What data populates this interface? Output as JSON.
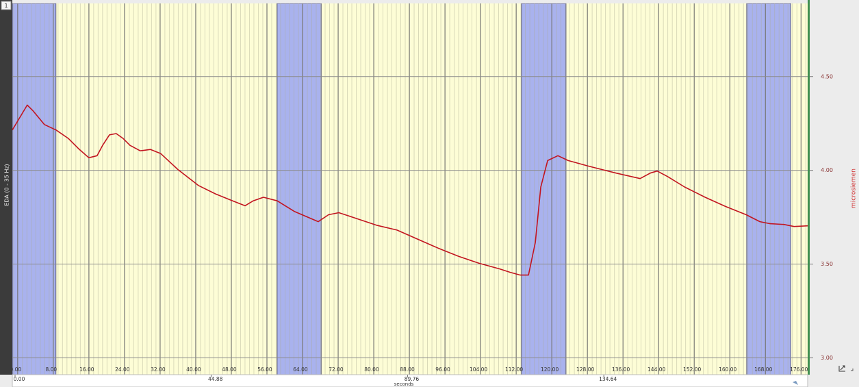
{
  "chart_data": {
    "type": "line",
    "channel_number": "1",
    "ylabel_left": "EDA (0 - 35 Hz)",
    "ylabel_right": "microsiemen",
    "xlabel": "seconds",
    "xlim": [
      -1.2,
      177.5
    ],
    "ylim": [
      2.91,
      4.89
    ],
    "xticks": [
      {
        "value": 0,
        "label": "0.00"
      },
      {
        "value": 8,
        "label": "8.00"
      },
      {
        "value": 16,
        "label": "16.00"
      },
      {
        "value": 24,
        "label": "24.00"
      },
      {
        "value": 32,
        "label": "32.00"
      },
      {
        "value": 40,
        "label": "40.00"
      },
      {
        "value": 48,
        "label": "48.00"
      },
      {
        "value": 56,
        "label": "56.00"
      },
      {
        "value": 64,
        "label": "64.00"
      },
      {
        "value": 72,
        "label": "72.00"
      },
      {
        "value": 80,
        "label": "80.00"
      },
      {
        "value": 88,
        "label": "88.00"
      },
      {
        "value": 96,
        "label": "96.00"
      },
      {
        "value": 104,
        "label": "104.00"
      },
      {
        "value": 112,
        "label": "112.00"
      },
      {
        "value": 120,
        "label": "120.00"
      },
      {
        "value": 128,
        "label": "128.00"
      },
      {
        "value": 136,
        "label": "136.00"
      },
      {
        "value": 144,
        "label": "144.00"
      },
      {
        "value": 152,
        "label": "152.00"
      },
      {
        "value": 160,
        "label": "160.00"
      },
      {
        "value": 168,
        "label": "168.00"
      },
      {
        "value": 176,
        "label": "176.00"
      }
    ],
    "xminor_step": 1,
    "yticks": [
      {
        "value": 3.0,
        "label": "3.00"
      },
      {
        "value": 3.5,
        "label": "3.50"
      },
      {
        "value": 4.0,
        "label": "4.00"
      },
      {
        "value": 4.5,
        "label": "4.50"
      }
    ],
    "overview_xlim": [
      0,
      180
    ],
    "overview_ticks": [
      {
        "value": 0,
        "label": "0.00"
      },
      {
        "value": 44.88,
        "label": "44.88"
      },
      {
        "value": 89.76,
        "label": "89.76"
      },
      {
        "value": 134.64,
        "label": "134.64"
      }
    ],
    "grid": true,
    "background_color": "#fdfdd6",
    "band_color": "#a9b2ee",
    "bands": [
      [
        -1.2,
        8.6
      ],
      [
        58.3,
        68.2
      ],
      [
        113.2,
        123.2
      ],
      [
        163.8,
        173.7
      ]
    ],
    "x": [
      -1.2,
      2.15,
      3.38,
      6.0,
      8.62,
      11.38,
      13.69,
      16.0,
      17.85,
      19.08,
      20.62,
      22.15,
      23.69,
      25.23,
      27.54,
      29.85,
      32.15,
      36.0,
      40.62,
      44.46,
      48.31,
      51.08,
      52.92,
      55.23,
      58.31,
      62.15,
      67.54,
      69.85,
      72.15,
      76.0,
      80.62,
      85.23,
      89.85,
      94.46,
      99.08,
      103.69,
      108.31,
      110.62,
      112.92,
      114.77,
      116.31,
      117.54,
      119.08,
      121.38,
      123.69,
      128.31,
      134.46,
      139.85,
      142.15,
      143.69,
      146.0,
      149.85,
      154.46,
      159.08,
      163.69,
      166.77,
      169.08,
      172.15,
      174.46,
      177.5
    ],
    "series": [
      {
        "name": "EDA",
        "color": "#c2141f",
        "values": [
          4.215,
          4.348,
          4.319,
          4.244,
          4.215,
          4.17,
          4.115,
          4.067,
          4.078,
          4.133,
          4.189,
          4.196,
          4.17,
          4.133,
          4.104,
          4.111,
          4.089,
          4.004,
          3.919,
          3.874,
          3.837,
          3.811,
          3.837,
          3.856,
          3.837,
          3.781,
          3.726,
          3.763,
          3.774,
          3.744,
          3.707,
          3.681,
          3.633,
          3.585,
          3.541,
          3.504,
          3.474,
          3.456,
          3.441,
          3.441,
          3.615,
          3.911,
          4.052,
          4.078,
          4.052,
          4.022,
          3.985,
          3.956,
          3.985,
          3.996,
          3.967,
          3.911,
          3.856,
          3.807,
          3.763,
          3.726,
          3.715,
          3.711,
          3.7,
          3.704
        ]
      }
    ]
  }
}
